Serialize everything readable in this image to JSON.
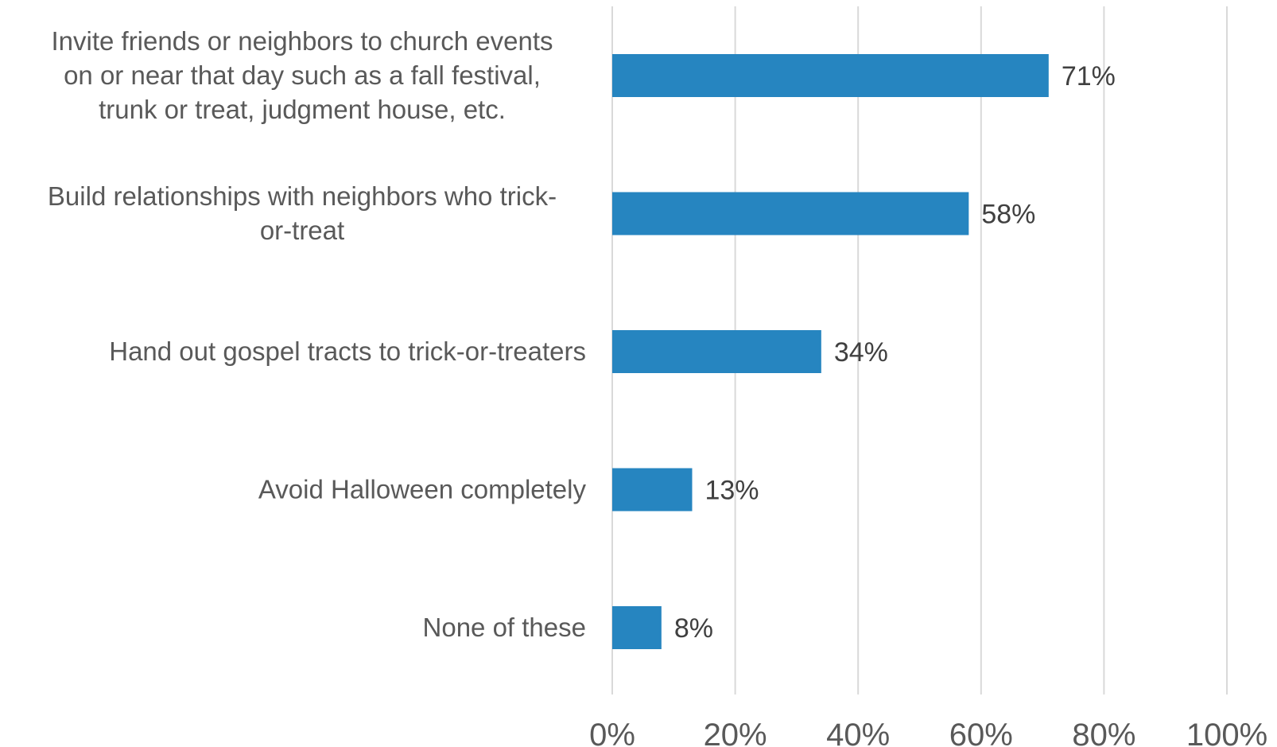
{
  "chart_data": {
    "type": "bar",
    "orientation": "horizontal",
    "categories": [
      [
        "Invite friends or neighbors to church events",
        "on or near that day such as a fall festival,",
        "trunk or treat, judgment house, etc."
      ],
      [
        "Build relationships with neighbors who trick-",
        "or-treat"
      ],
      [
        "Hand out gospel tracts to trick-or-treaters"
      ],
      [
        "Avoid Halloween completely"
      ],
      [
        "None of these"
      ]
    ],
    "values": [
      71,
      58,
      34,
      13,
      8
    ],
    "data_labels": [
      "71%",
      "58%",
      "34%",
      "13%",
      "8%"
    ],
    "xlim": [
      0,
      100
    ],
    "x_ticks": [
      0,
      20,
      40,
      60,
      80,
      100
    ],
    "x_tick_labels": [
      "0%",
      "20%",
      "40%",
      "60%",
      "80%",
      "100%"
    ],
    "grid": "vertical",
    "legend": "none",
    "bar_color": "#2685c0",
    "title": "",
    "xlabel": "",
    "ylabel": ""
  }
}
